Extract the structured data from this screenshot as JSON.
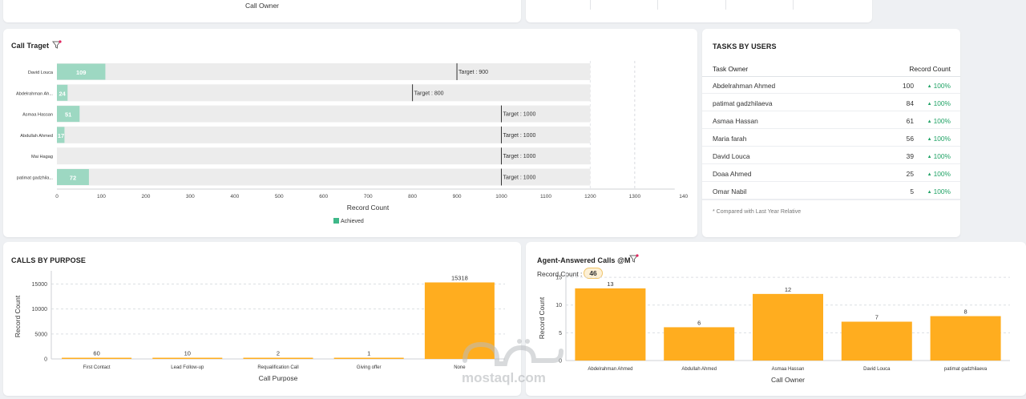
{
  "top_left_card": {
    "label": "Call Owner"
  },
  "call_target": {
    "title": "Call Traget",
    "colors": {
      "achieved": "#9dd8c2",
      "track": "#ececec",
      "target_line": "#333333",
      "legend": "#3fb889"
    },
    "chart_data": {
      "type": "bar",
      "orientation": "horizontal",
      "categories": [
        "David Louca",
        "Abdelrahman Ah...",
        "Asmaa Hassan",
        "Abdullah Ahmed",
        "Mai Hagag",
        "patimat gadzhila..."
      ],
      "series": [
        {
          "name": "Achieved",
          "values": [
            109,
            24,
            51,
            17,
            0,
            72
          ]
        }
      ],
      "value_labels": [
        "109",
        "24",
        "51",
        "17",
        "",
        "72"
      ],
      "targets": [
        900,
        800,
        1000,
        1000,
        1000,
        1000
      ],
      "target_labels": [
        "Target : 900",
        "Target : 800",
        "Target : 1000",
        "Target : 1000",
        "Target : 1000",
        "Target : 1000"
      ],
      "xlabel": "Record Count",
      "xlim": [
        0,
        1400
      ],
      "x_ticks": [
        "0",
        "100",
        "200",
        "300",
        "400",
        "500",
        "600",
        "700",
        "800",
        "900",
        "1000",
        "1100",
        "1200",
        "1300",
        "140"
      ],
      "track_max": 1200,
      "legend": [
        "Achieved"
      ],
      "legend_position": "bottom"
    }
  },
  "tasks_by_users": {
    "title": "TASKS BY USERS",
    "col_owner": "Task Owner",
    "col_count": "Record Count",
    "rows": [
      {
        "name": "Abdelrahman Ahmed",
        "count": "100",
        "pct": "100%"
      },
      {
        "name": "patimat gadzhilaeva",
        "count": "84",
        "pct": "100%"
      },
      {
        "name": "Asmaa Hassan",
        "count": "61",
        "pct": "100%"
      },
      {
        "name": "Maria farah",
        "count": "56",
        "pct": "100%"
      },
      {
        "name": "David Louca",
        "count": "39",
        "pct": "100%"
      },
      {
        "name": "Doaa Ahmed",
        "count": "25",
        "pct": "100%"
      },
      {
        "name": "Omar Nabil",
        "count": "5",
        "pct": "100%"
      }
    ],
    "footnote": "* Compared with Last Year Relative"
  },
  "calls_by_purpose": {
    "title": "CALLS BY PURPOSE",
    "color": "#ffad1f",
    "chart_data": {
      "type": "bar",
      "categories": [
        "First Contact",
        "Lead Follow-up",
        "Requalification Call",
        "Giving offer",
        "None"
      ],
      "values": [
        60,
        10,
        2,
        1,
        15318
      ],
      "value_labels": [
        "60",
        "10",
        "2",
        "1",
        "15318"
      ],
      "xlabel": "Call Purpose",
      "ylabel": "Record Count",
      "ylim": [
        0,
        17000
      ],
      "y_ticks": [
        0,
        5000,
        10000,
        15000
      ],
      "y_tick_labels": [
        "0",
        "5000",
        "10000",
        "15000"
      ]
    }
  },
  "agent_answered": {
    "title": "Agent-Answered Calls @M",
    "record_label": "Record Count :",
    "record_value": "46",
    "color": "#ffad1f",
    "chart_data": {
      "type": "bar",
      "categories": [
        "Abdelrahman Ahmed",
        "Abdullah Ahmed",
        "Asmaa Hassan",
        "David Louca",
        "patimat gadzhilaeva"
      ],
      "values": [
        13,
        6,
        12,
        7,
        8
      ],
      "value_labels": [
        "13",
        "6",
        "12",
        "7",
        "8"
      ],
      "xlabel": "Call Owner",
      "ylabel": "Record Count",
      "ylim": [
        0,
        15.3
      ],
      "y_ticks": [
        0,
        5,
        10,
        15
      ],
      "y_tick_labels": [
        "0",
        "5",
        "10",
        "15"
      ]
    }
  },
  "watermark": {
    "text": "mostaql.com"
  }
}
